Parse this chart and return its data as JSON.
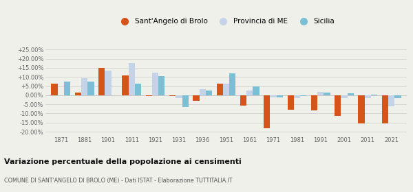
{
  "years": [
    1871,
    1881,
    1901,
    1911,
    1921,
    1931,
    1936,
    1951,
    1961,
    1971,
    1981,
    1991,
    2001,
    2011,
    2021
  ],
  "sant_angelo": [
    6.5,
    1.5,
    15.0,
    11.0,
    -0.5,
    -0.5,
    -3.0,
    6.5,
    -5.5,
    -18.0,
    -8.0,
    -8.5,
    -11.5,
    -15.5,
    -15.5
  ],
  "provincia_me": [
    0.0,
    9.5,
    13.5,
    17.5,
    12.5,
    -1.5,
    3.5,
    6.5,
    2.5,
    -1.0,
    -1.5,
    2.0,
    -1.5,
    -1.5,
    -6.0
  ],
  "sicilia": [
    7.5,
    7.5,
    0.0,
    6.5,
    10.5,
    -6.5,
    2.5,
    12.0,
    5.0,
    -1.0,
    -0.5,
    1.5,
    1.0,
    0.5,
    -1.5
  ],
  "color_sant_angelo": "#d4541a",
  "color_provincia": "#c5d3e8",
  "color_sicilia": "#7bbfd4",
  "title": "Variazione percentuale della popolazione ai censimenti",
  "subtitle": "COMUNE DI SANT'ANGELO DI BROLO (ME) - Dati ISTAT - Elaborazione TUTTITALIA.IT",
  "ylim": [
    -22,
    28
  ],
  "yticks": [
    -20,
    -15,
    -10,
    -5,
    0,
    5,
    10,
    15,
    20,
    25
  ],
  "ytick_labels": [
    "-20.00%",
    "-15.00%",
    "-10.00%",
    "-5.00%",
    "0.00%",
    "+5.00%",
    "+10.00%",
    "+15.00%",
    "+20.00%",
    "+25.00%"
  ],
  "bg_color": "#f0f0eb",
  "bar_width": 0.27
}
